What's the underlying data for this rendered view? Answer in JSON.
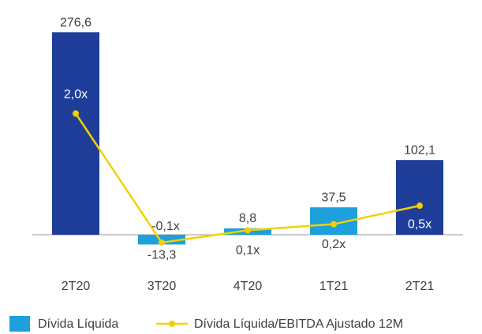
{
  "chart_data": {
    "type": "bar-line",
    "categories": [
      "2T20",
      "3T20",
      "4T20",
      "1T21",
      "2T21"
    ],
    "series": [
      {
        "name": "Dívida Líquida",
        "type": "bar",
        "color": "#1ea0dc",
        "colors": [
          "#1f3e9a",
          "#1ea0dc",
          "#1ea0dc",
          "#1ea0dc",
          "#1f3e9a"
        ],
        "values": [
          276.6,
          -13.3,
          8.8,
          37.5,
          102.1
        ],
        "value_labels": [
          "276,6",
          "-13,3",
          "8,8",
          "37,5",
          "102,1"
        ]
      },
      {
        "name": "Dívida Líquida/EBITDA Ajustado 12M",
        "type": "line",
        "axis": "y2",
        "color": "#f5d000",
        "values": [
          2.0,
          -0.1,
          0.1,
          0.2,
          0.5
        ],
        "value_labels": [
          "2,0x",
          "-0,1x",
          "0,1x",
          "0,2x",
          "0,5x"
        ]
      }
    ],
    "ylim": [
      -30,
      300
    ],
    "y2lim": [
      -0.33,
      3.6
    ],
    "legend": "bottom"
  }
}
